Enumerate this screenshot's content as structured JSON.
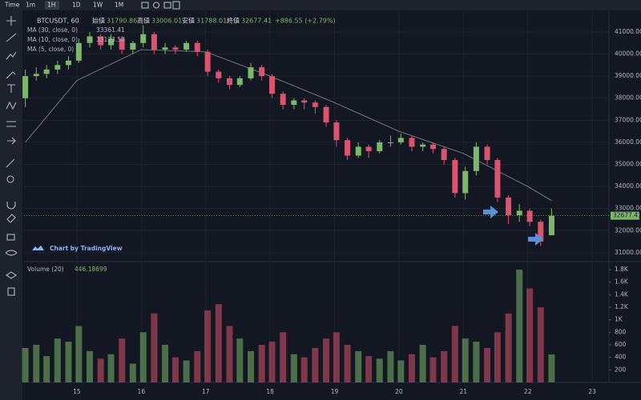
{
  "toolbar": {
    "items": [
      "Time",
      "1m",
      "1H",
      "1D",
      "1W",
      "1M"
    ]
  },
  "chart_data": {
    "type": "candlestick",
    "symbol": "BTCUSDT, 60",
    "ohlc_labels": [
      "始値",
      "高値",
      "安値",
      "終値"
    ],
    "change": "+886.55 (+2.79%)",
    "ma_legend": [
      {
        "label": "MA (30, close, 0)",
        "value": 33361.41
      },
      {
        "label": "MA (10, close, 0)",
        "value": 33123.58
      },
      {
        "label": "MA (5, close, 0)"
      }
    ],
    "ma_line": {
      "x": [
        14.2,
        15,
        16,
        17,
        18,
        19,
        20,
        21,
        22,
        22.37
      ],
      "values": [
        36000,
        38800,
        40200,
        40100,
        39000,
        37800,
        36500,
        35500,
        34000,
        33361.41
      ],
      "color": "#8a8d97"
    },
    "watermark": "Chart by TradingView",
    "volume_label": "Volume (20)",
    "up_color": "#7cb86a",
    "down_color": "#d9546c",
    "x": [
      14.2,
      14.37,
      14.53,
      14.7,
      14.87,
      15.03,
      15.2,
      15.37,
      15.53,
      15.7,
      15.87,
      16.03,
      16.2,
      16.37,
      16.53,
      16.7,
      16.87,
      17.03,
      17.2,
      17.37,
      17.53,
      17.7,
      17.87,
      18.03,
      18.2,
      18.37,
      18.53,
      18.7,
      18.87,
      19.03,
      19.2,
      19.37,
      19.53,
      19.7,
      19.87,
      20.03,
      20.2,
      20.37,
      20.53,
      20.7,
      20.87,
      21.03,
      21.2,
      21.37,
      21.53,
      21.7,
      21.87,
      22.03,
      22.2,
      22.37
    ],
    "open": [
      38000,
      39000,
      39100,
      39300,
      39500,
      39700,
      40500,
      40800,
      40400,
      40700,
      40200,
      40500,
      40900,
      40200,
      40300,
      40200,
      40500,
      40100,
      39200,
      38900,
      38600,
      38900,
      39400,
      39000,
      38200,
      37700,
      37900,
      37800,
      37600,
      36900,
      36100,
      35400,
      35800,
      35600,
      36000,
      36000,
      36200,
      35800,
      35900,
      35700,
      35200,
      33700,
      34700,
      35800,
      35200,
      33500,
      32700,
      32900,
      32400,
      31790.86
    ],
    "high": [
      39300,
      39400,
      39500,
      39700,
      39900,
      40700,
      41000,
      40900,
      40900,
      40800,
      40600,
      41300,
      41000,
      40500,
      40400,
      40600,
      40600,
      40200,
      39300,
      39000,
      39000,
      39600,
      39500,
      39100,
      38300,
      38000,
      38000,
      37900,
      37700,
      37000,
      36200,
      36000,
      35900,
      36100,
      36300,
      36400,
      36300,
      36000,
      36000,
      35800,
      35300,
      34900,
      36000,
      35900,
      35300,
      33600,
      33200,
      33000,
      32500,
      33006.01
    ],
    "low": [
      37600,
      38800,
      38900,
      39100,
      39300,
      39600,
      40300,
      40200,
      40200,
      40000,
      40000,
      40300,
      40000,
      40000,
      40000,
      40100,
      39900,
      39000,
      38700,
      38400,
      38500,
      38800,
      38800,
      38000,
      37500,
      37500,
      37500,
      37300,
      36700,
      35800,
      35200,
      35300,
      35300,
      35500,
      35800,
      35900,
      35600,
      35600,
      35500,
      35000,
      33500,
      33400,
      34500,
      35000,
      33300,
      32300,
      32400,
      32200,
      31300,
      31788.01
    ],
    "close": [
      39000,
      39100,
      39300,
      39500,
      39700,
      40500,
      40800,
      40400,
      40700,
      40200,
      40500,
      40900,
      40200,
      40300,
      40200,
      40500,
      40100,
      39200,
      38900,
      38600,
      38900,
      39400,
      39000,
      38200,
      37700,
      37900,
      37800,
      37600,
      36900,
      36100,
      35400,
      35800,
      35600,
      36000,
      36000,
      36200,
      35800,
      35900,
      35700,
      35200,
      33700,
      34700,
      35800,
      35200,
      33500,
      32700,
      32900,
      32400,
      31500,
      32677.41
    ],
    "volume": [
      550,
      600,
      420,
      700,
      650,
      900,
      500,
      380,
      450,
      700,
      300,
      800,
      1100,
      600,
      400,
      350,
      500,
      1150,
      1250,
      900,
      700,
      500,
      600,
      650,
      800,
      450,
      400,
      550,
      700,
      800,
      600,
      500,
      420,
      380,
      500,
      350,
      450,
      600,
      400,
      500,
      900,
      700,
      650,
      550,
      800,
      1100,
      1800,
      1500,
      1200,
      446.18699
    ],
    "xlim": [
      14.18,
      23.26
    ],
    "xticks": [
      15,
      16,
      17,
      18,
      19,
      20,
      21,
      22,
      23
    ],
    "ylim": [
      30670,
      41940
    ],
    "yticks": [
      {
        "value": 31000,
        "label": "31000.00"
      },
      {
        "value": 32000,
        "label": "32000.00"
      },
      {
        "value": 33000,
        "label": "33000.00"
      },
      {
        "value": 34000,
        "label": "34000.00"
      },
      {
        "value": 35000,
        "label": "35000.00"
      },
      {
        "value": 36000,
        "label": "36000.00"
      },
      {
        "value": 37000,
        "label": "37000.00"
      },
      {
        "value": 38000,
        "label": "38000.00"
      },
      {
        "value": 39000,
        "label": "39000.00"
      },
      {
        "value": 40000,
        "label": "40000.00"
      },
      {
        "value": 41000,
        "label": "41000.00"
      }
    ],
    "vlim": [
      0,
      1916
    ],
    "vticks": [
      200,
      400,
      600,
      800,
      {
        "value": 1000,
        "label": "1K"
      },
      {
        "value": 1200,
        "label": "1.2K"
      },
      {
        "value": 1400,
        "label": "1.4K"
      },
      {
        "value": 1600,
        "label": "1.6K"
      },
      {
        "value": 1800,
        "label": "1.8K"
      }
    ],
    "grid": true
  }
}
